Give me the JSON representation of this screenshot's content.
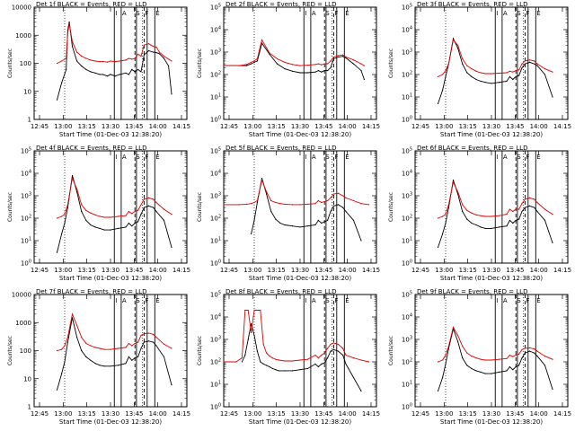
{
  "figure": {
    "vertical_marker_letters": [
      "I",
      "A",
      "S",
      "F",
      "E"
    ]
  },
  "chart_data": [
    {
      "type": "line",
      "title": "Det 1f BLACK = Events, RED = LLD",
      "xlabel": "Start Time (01-Dec-03 12:38:20)",
      "ylabel": "Counts/sec",
      "xticks": [
        "12:45",
        "13:00",
        "13:15",
        "13:30",
        "13:45",
        "14:00",
        "14:15"
      ],
      "xrange_min": [
        0,
        100
      ],
      "yscale": "log",
      "ylim": [
        1,
        10000
      ],
      "yticks": [
        "1",
        "10",
        "100",
        "1000",
        "10000"
      ],
      "x": [
        15,
        18,
        21,
        22,
        23,
        25,
        28,
        31,
        34,
        37,
        40,
        43,
        45,
        48,
        50,
        53,
        56,
        60,
        62,
        64,
        66,
        68,
        70,
        72,
        75,
        78,
        80,
        82,
        85,
        88,
        90
      ],
      "series": [
        {
          "name": "Events",
          "color": "#000000",
          "values": [
            5,
            20,
            60,
            1500,
            3000,
            400,
            120,
            80,
            60,
            50,
            45,
            40,
            40,
            35,
            40,
            35,
            40,
            45,
            40,
            60,
            50,
            60,
            50,
            200,
            280,
            250,
            240,
            220,
            150,
            80,
            8
          ]
        },
        {
          "name": "LLD",
          "color": "#e00000",
          "values": [
            100,
            120,
            150,
            1200,
            2500,
            600,
            250,
            180,
            150,
            130,
            120,
            115,
            115,
            110,
            120,
            115,
            120,
            130,
            150,
            140,
            150,
            210,
            180,
            450,
            500,
            400,
            380,
            250,
            180,
            140,
            120
          ]
        }
      ]
    },
    {
      "type": "line",
      "title": "Det 2f BLACK = Events, RED = LLD",
      "xlabel": "Start Time (01-Dec-03 12:38:20)",
      "ylabel": "Counts/sec",
      "xticks": [
        "12:45",
        "13:00",
        "13:15",
        "13:30",
        "13:45",
        "14:00",
        "14:15"
      ],
      "xrange_min": [
        0,
        100
      ],
      "yscale": "log",
      "ylim": [
        1,
        100000
      ],
      "yticks": [
        "10^0",
        "10^1",
        "10^2",
        "10^3",
        "10^4",
        "10^5"
      ],
      "x": [
        0,
        10,
        15,
        18,
        20,
        22,
        25,
        30,
        35,
        40,
        45,
        50,
        55,
        60,
        62,
        64,
        66,
        68,
        70,
        72,
        75,
        78,
        80,
        85,
        90,
        92
      ],
      "series": [
        {
          "name": "Events",
          "color": "#000000",
          "values": [
            250,
            250,
            250,
            300,
            350,
            400,
            2500,
            800,
            300,
            180,
            140,
            120,
            120,
            130,
            150,
            130,
            150,
            150,
            200,
            500,
            600,
            650,
            550,
            300,
            150,
            60
          ]
        },
        {
          "name": "LLD",
          "color": "#e00000",
          "values": [
            250,
            250,
            280,
            350,
            400,
            500,
            3500,
            900,
            500,
            350,
            280,
            250,
            260,
            280,
            300,
            270,
            300,
            300,
            400,
            600,
            700,
            750,
            600,
            450,
            300,
            250
          ]
        }
      ]
    },
    {
      "type": "line",
      "title": "Det 3f BLACK = Events, RED = LLD",
      "xlabel": "Start Time (01-Dec-03 12:38:20)",
      "ylabel": "Counts/sec",
      "xticks": [
        "12:45",
        "13:00",
        "13:15",
        "13:30",
        "13:45",
        "14:00",
        "14:15"
      ],
      "xrange_min": [
        0,
        100
      ],
      "yscale": "log",
      "ylim": [
        1,
        100000
      ],
      "yticks": [
        "10^0",
        "10^1",
        "10^2",
        "10^3",
        "10^4",
        "10^5"
      ],
      "x": [
        15,
        18,
        20,
        22,
        25,
        28,
        31,
        34,
        37,
        40,
        43,
        46,
        50,
        55,
        60,
        62,
        64,
        66,
        68,
        70,
        72,
        75,
        78,
        80,
        85,
        90
      ],
      "series": [
        {
          "name": "Events",
          "color": "#000000",
          "values": [
            5,
            20,
            80,
            300,
            4000,
            1500,
            300,
            120,
            80,
            60,
            50,
            45,
            40,
            45,
            50,
            80,
            60,
            80,
            90,
            200,
            300,
            350,
            300,
            250,
            100,
            10
          ]
        },
        {
          "name": "LLD",
          "color": "#e00000",
          "values": [
            80,
            100,
            150,
            300,
            3500,
            2000,
            500,
            250,
            180,
            140,
            120,
            110,
            110,
            115,
            120,
            140,
            130,
            150,
            160,
            300,
            400,
            450,
            400,
            300,
            180,
            130
          ]
        }
      ]
    },
    {
      "type": "line",
      "title": "Det 4f BLACK = Events, RED = LLD",
      "xlabel": "Start Time (01-Dec-03 12:38:20)",
      "ylabel": "Counts/sec",
      "xticks": [
        "12:45",
        "13:00",
        "13:15",
        "13:30",
        "13:45",
        "14:00",
        "14:15"
      ],
      "xrange_min": [
        0,
        100
      ],
      "yscale": "log",
      "ylim": [
        1,
        100000
      ],
      "yticks": [
        "10^0",
        "10^1",
        "10^2",
        "10^3",
        "10^4",
        "10^5"
      ],
      "x": [
        15,
        18,
        20,
        22,
        25,
        28,
        31,
        34,
        37,
        40,
        43,
        46,
        50,
        55,
        60,
        62,
        64,
        66,
        68,
        70,
        72,
        75,
        78,
        80,
        85,
        90
      ],
      "series": [
        {
          "name": "Events",
          "color": "#000000",
          "values": [
            3,
            20,
            60,
            300,
            8000,
            1500,
            200,
            80,
            50,
            40,
            35,
            30,
            30,
            35,
            40,
            60,
            45,
            60,
            70,
            150,
            300,
            350,
            300,
            200,
            80,
            5
          ]
        },
        {
          "name": "LLD",
          "color": "#e00000",
          "values": [
            100,
            120,
            150,
            400,
            6000,
            2000,
            400,
            220,
            170,
            140,
            120,
            110,
            110,
            120,
            130,
            200,
            160,
            200,
            220,
            400,
            700,
            800,
            700,
            500,
            250,
            150
          ]
        }
      ]
    },
    {
      "type": "line",
      "title": "Det 5f BLACK = Events, RED = LLD",
      "xlabel": "Start Time (01-Dec-03 12:38:20)",
      "ylabel": "Counts/sec",
      "xticks": [
        "12:45",
        "13:00",
        "13:15",
        "13:30",
        "13:45",
        "14:00",
        "14:15"
      ],
      "xrange_min": [
        0,
        100
      ],
      "yscale": "log",
      "ylim": [
        1,
        100000
      ],
      "yticks": [
        "10^0",
        "10^1",
        "10^2",
        "10^3",
        "10^4",
        "10^5"
      ],
      "x": [
        0,
        10,
        15,
        18,
        20,
        22,
        25,
        28,
        31,
        34,
        37,
        40,
        45,
        50,
        55,
        60,
        62,
        64,
        66,
        68,
        70,
        72,
        75,
        78,
        80,
        85,
        90,
        95
      ],
      "series": [
        {
          "name": "Events",
          "color": "#000000",
          "values": [
            null,
            null,
            null,
            20,
            80,
            500,
            6000,
            1200,
            200,
            90,
            60,
            50,
            45,
            40,
            45,
            50,
            80,
            60,
            70,
            80,
            200,
            350,
            400,
            300,
            200,
            80,
            10,
            null
          ]
        },
        {
          "name": "LLD",
          "color": "#e00000",
          "values": [
            400,
            400,
            420,
            450,
            500,
            600,
            5000,
            1500,
            600,
            500,
            450,
            420,
            400,
            400,
            420,
            450,
            600,
            500,
            550,
            600,
            800,
            1200,
            1300,
            1000,
            800,
            600,
            450,
            400
          ]
        }
      ]
    },
    {
      "type": "line",
      "title": "Det 6f BLACK = Events, RED = LLD",
      "xlabel": "Start Time (01-Dec-03 12:38:20)",
      "ylabel": "Counts/sec",
      "xticks": [
        "12:45",
        "13:00",
        "13:15",
        "13:30",
        "13:45",
        "14:00",
        "14:15"
      ],
      "xrange_min": [
        0,
        100
      ],
      "yscale": "log",
      "ylim": [
        1,
        100000
      ],
      "yticks": [
        "10^0",
        "10^1",
        "10^2",
        "10^3",
        "10^4",
        "10^5"
      ],
      "x": [
        15,
        18,
        20,
        22,
        25,
        28,
        31,
        34,
        37,
        40,
        43,
        46,
        50,
        55,
        60,
        62,
        64,
        66,
        68,
        70,
        72,
        75,
        78,
        80,
        85,
        90
      ],
      "series": [
        {
          "name": "Events",
          "color": "#000000",
          "values": [
            5,
            20,
            60,
            300,
            5000,
            1200,
            200,
            90,
            60,
            50,
            40,
            35,
            35,
            40,
            45,
            80,
            60,
            80,
            90,
            200,
            300,
            350,
            300,
            200,
            80,
            8
          ]
        },
        {
          "name": "LLD",
          "color": "#e00000",
          "values": [
            100,
            120,
            150,
            400,
            4000,
            1500,
            400,
            220,
            170,
            140,
            130,
            120,
            120,
            130,
            150,
            250,
            200,
            250,
            250,
            450,
            700,
            800,
            700,
            500,
            250,
            150
          ]
        }
      ]
    },
    {
      "type": "line",
      "title": "Det 7f BLACK = Events, RED = LLD",
      "xlabel": "Start Time (01-Dec-03 12:38:20)",
      "ylabel": "Counts/sec",
      "xticks": [
        "12:45",
        "13:00",
        "13:15",
        "13:30",
        "13:45",
        "14:00",
        "14:15"
      ],
      "xrange_min": [
        0,
        100
      ],
      "yscale": "log",
      "ylim": [
        1,
        10000
      ],
      "yticks": [
        "1",
        "10",
        "100",
        "1000",
        "10000"
      ],
      "x": [
        15,
        18,
        20,
        22,
        25,
        28,
        31,
        34,
        37,
        40,
        43,
        46,
        50,
        55,
        60,
        62,
        64,
        66,
        68,
        70,
        72,
        75,
        78,
        80,
        85,
        90
      ],
      "series": [
        {
          "name": "Events",
          "color": "#000000",
          "values": [
            4,
            15,
            40,
            200,
            1500,
            300,
            100,
            60,
            45,
            35,
            30,
            28,
            28,
            30,
            35,
            60,
            45,
            55,
            60,
            120,
            200,
            220,
            200,
            150,
            60,
            6
          ]
        },
        {
          "name": "LLD",
          "color": "#e00000",
          "values": [
            100,
            110,
            150,
            300,
            2000,
            800,
            300,
            180,
            150,
            130,
            120,
            110,
            110,
            120,
            130,
            180,
            150,
            180,
            200,
            350,
            400,
            420,
            380,
            300,
            170,
            120
          ]
        }
      ]
    },
    {
      "type": "line",
      "title": "Det 8f BLACK = Events, RED = LLD",
      "xlabel": "Start Time (01-Dec-03 12:38:20)",
      "ylabel": "Counts/sec",
      "xticks": [
        "12:45",
        "13:00",
        "13:15",
        "13:30",
        "13:45",
        "14:00",
        "14:15"
      ],
      "xrange_min": [
        0,
        100
      ],
      "yscale": "log",
      "ylim": [
        1,
        100000
      ],
      "yticks": [
        "10^0",
        "10^1",
        "10^2",
        "10^3",
        "10^4",
        "10^5"
      ],
      "x": [
        0,
        8,
        12,
        14,
        16,
        18,
        20,
        22,
        24,
        26,
        28,
        30,
        32,
        34,
        36,
        40,
        45,
        50,
        55,
        60,
        62,
        64,
        66,
        68,
        70,
        72,
        75,
        78,
        80,
        85,
        90,
        95
      ],
      "series": [
        {
          "name": "Events",
          "color": "#000000",
          "values": [
            null,
            null,
            100,
            200,
            1000,
            5000,
            1500,
            300,
            100,
            80,
            70,
            60,
            50,
            45,
            40,
            40,
            40,
            45,
            50,
            80,
            60,
            80,
            90,
            150,
            300,
            350,
            300,
            200,
            80,
            20,
            5,
            null
          ]
        },
        {
          "name": "LLD",
          "color": "#e00000",
          "values": [
            100,
            100,
            150,
            20000,
            20000,
            2000,
            20000,
            20000,
            20000,
            600,
            250,
            180,
            150,
            130,
            120,
            110,
            110,
            120,
            130,
            200,
            150,
            200,
            250,
            400,
            600,
            700,
            600,
            400,
            200,
            150,
            120,
            100
          ]
        }
      ]
    },
    {
      "type": "line",
      "title": "Det 9f BLACK = Events, RED = LLD",
      "xlabel": "Start Time (01-Dec-03 12:38:20)",
      "ylabel": "Counts/sec",
      "xticks": [
        "12:45",
        "13:00",
        "13:15",
        "13:30",
        "13:45",
        "14:00",
        "14:15"
      ],
      "xrange_min": [
        0,
        100
      ],
      "yscale": "log",
      "ylim": [
        1,
        100000
      ],
      "yticks": [
        "10^0",
        "10^1",
        "10^2",
        "10^3",
        "10^4",
        "10^5"
      ],
      "x": [
        15,
        18,
        20,
        22,
        25,
        28,
        31,
        34,
        37,
        40,
        43,
        46,
        50,
        55,
        60,
        62,
        64,
        66,
        68,
        70,
        72,
        75,
        78,
        80,
        85,
        90
      ],
      "series": [
        {
          "name": "Events",
          "color": "#000000",
          "values": [
            5,
            20,
            80,
            400,
            3000,
            800,
            150,
            70,
            50,
            40,
            35,
            30,
            30,
            35,
            40,
            60,
            45,
            60,
            70,
            150,
            250,
            300,
            250,
            180,
            70,
            6
          ]
        },
        {
          "name": "LLD",
          "color": "#e00000",
          "values": [
            100,
            120,
            200,
            500,
            3500,
            1500,
            500,
            250,
            180,
            150,
            130,
            120,
            120,
            130,
            140,
            200,
            170,
            200,
            220,
            350,
            400,
            420,
            380,
            300,
            180,
            130
          ]
        }
      ]
    }
  ]
}
